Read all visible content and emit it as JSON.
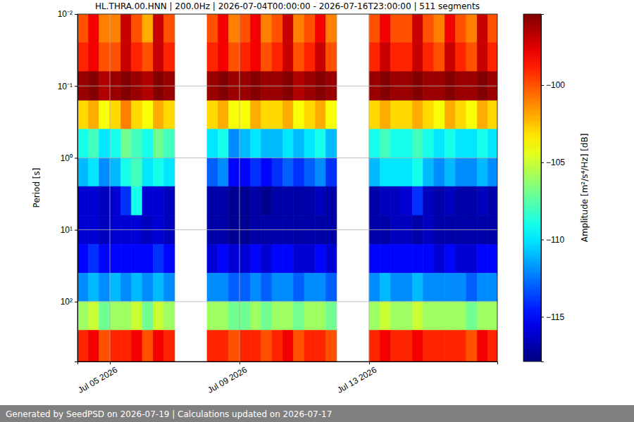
{
  "chart_data": {
    "type": "heatmap",
    "title": "HL.THRA.00.HNN | 200.0Hz | 2026-07-04T00:00:00 - 2026-07-16T23:00:00 | 511 segments",
    "y_label": "Period [s]",
    "footer": "Generated by SeedPSD on 2026-07-19 | Calculations updated on 2026-07-17",
    "log": "y",
    "grid": true,
    "xlim": [
      "2026-07-04T00:00",
      "2026-07-16T23:00"
    ],
    "xticks": [
      {
        "value": "2026-07-05T00:00",
        "label": "Jul 05 2026"
      },
      {
        "value": "2026-07-09T00:00",
        "label": "Jul 09 2026"
      },
      {
        "value": "2026-07-13T00:00",
        "label": "Jul 13 2026"
      }
    ],
    "ylim": [
      0.01,
      680
    ],
    "yticks": [
      {
        "value": 0.01,
        "label": "10⁻²"
      },
      {
        "value": 0.1,
        "label": "10⁻¹"
      },
      {
        "value": 1,
        "label": "10⁰"
      },
      {
        "value": 10,
        "label": "10¹"
      },
      {
        "value": 100,
        "label": "10²"
      }
    ],
    "x_edges": [
      "2026-07-04T00:00",
      "2026-07-04T08:00",
      "2026-07-04T16:00",
      "2026-07-05T00:00",
      "2026-07-05T08:00",
      "2026-07-05T16:00",
      "2026-07-06T00:00",
      "2026-07-06T08:00",
      "2026-07-06T16:00",
      "2026-07-07T00:00",
      "2026-07-07T08:00",
      "2026-07-07T16:00",
      "2026-07-08T00:00",
      "2026-07-08T08:00",
      "2026-07-08T16:00",
      "2026-07-09T00:00",
      "2026-07-09T08:00",
      "2026-07-09T16:00",
      "2026-07-10T00:00",
      "2026-07-10T08:00",
      "2026-07-10T16:00",
      "2026-07-11T00:00",
      "2026-07-11T08:00",
      "2026-07-11T16:00",
      "2026-07-12T00:00",
      "2026-07-12T08:00",
      "2026-07-12T16:00",
      "2026-07-13T00:00",
      "2026-07-13T08:00",
      "2026-07-13T16:00",
      "2026-07-14T00:00",
      "2026-07-14T08:00",
      "2026-07-14T16:00",
      "2026-07-15T00:00",
      "2026-07-15T08:00",
      "2026-07-15T16:00",
      "2026-07-16T00:00",
      "2026-07-16T08:00",
      "2026-07-16T16:00",
      "2026-07-16T23:00"
    ],
    "y_edges": [
      0.01,
      0.025,
      0.063,
      0.16,
      0.4,
      1,
      2.5,
      6.3,
      16,
      40,
      100,
      250,
      680
    ],
    "values": [
      [
        -100,
        -99,
        -96,
        -103,
        -109,
        -111,
        -116,
        -116,
        -115,
        -112,
        -106,
        -99
      ],
      [
        -98,
        -98,
        -95.5,
        -102,
        -108,
        -110,
        -116,
        -116,
        -114,
        -111,
        -105,
        -98
      ],
      [
        -101,
        -100,
        -96.5,
        -104,
        -110,
        -112,
        -116.5,
        -116.5,
        -115,
        -112,
        -107,
        -100
      ],
      [
        -101,
        -100,
        -96,
        -103,
        -109,
        -111,
        -116,
        -116,
        -115,
        -111,
        -106,
        -99
      ],
      [
        -97,
        -97,
        -95.5,
        -101,
        -107,
        -109,
        -114,
        -116,
        -115,
        -112,
        -106,
        -99
      ],
      [
        -100,
        -99,
        -96,
        -103,
        -108,
        -108,
        -109,
        -116,
        -115,
        -111,
        -105,
        -98
      ],
      [
        -102,
        -100,
        -96.5,
        -104,
        -109,
        -110,
        -116,
        -116.5,
        -115,
        -112,
        -107,
        -100
      ],
      [
        -97,
        -97,
        -95.5,
        -102,
        -107,
        -109,
        -116,
        -116,
        -114,
        -111,
        -105,
        -98
      ],
      [
        -100,
        -99,
        -96,
        -103,
        -108,
        -110,
        -116.5,
        -116.5,
        -115,
        -112,
        -106,
        -99
      ],
      null,
      null,
      null,
      [
        -100,
        -99,
        -96,
        -103,
        -110,
        -113,
        -117,
        -117,
        -116,
        -112,
        -106,
        -99
      ],
      [
        -98,
        -98,
        -95.5,
        -102,
        -109,
        -112,
        -117,
        -117,
        -115,
        -112,
        -106,
        -99
      ],
      [
        -101,
        -100,
        -96,
        -104,
        -112,
        -115,
        -117.5,
        -117.5,
        -116,
        -113,
        -107,
        -100
      ],
      [
        -100,
        -99,
        -96,
        -104,
        -111,
        -115,
        -117.5,
        -117.5,
        -116,
        -113,
        -107,
        -99
      ],
      [
        -98,
        -98,
        -95.5,
        -102,
        -110,
        -114,
        -117,
        -117,
        -115,
        -112,
        -106,
        -99
      ],
      [
        -101,
        -100,
        -96,
        -103,
        -111,
        -115,
        -117.5,
        -117,
        -116,
        -113,
        -107,
        -100
      ],
      [
        -100,
        -99,
        -96,
        -103,
        -111,
        -114,
        -117,
        -117,
        -115,
        -112,
        -106,
        -99
      ],
      [
        -97,
        -97,
        -95.5,
        -102,
        -110,
        -113,
        -117,
        -117,
        -115,
        -112,
        -106,
        -98
      ],
      [
        -101,
        -100,
        -96.5,
        -104,
        -111,
        -114,
        -117,
        -117,
        -116,
        -113,
        -107,
        -100
      ],
      [
        -100,
        -99,
        -96,
        -103,
        -110,
        -113,
        -117,
        -117,
        -116,
        -112,
        -106,
        -99
      ],
      [
        -98,
        -97,
        -95.5,
        -102,
        -109,
        -112,
        -116.5,
        -117,
        -115,
        -112,
        -106,
        -99
      ],
      [
        -101,
        -100,
        -96,
        -104,
        -111,
        -114,
        -117,
        -117,
        -116,
        -113,
        -107,
        -100
      ],
      null,
      null,
      null,
      [
        -100,
        -99,
        -96,
        -103,
        -109,
        -111,
        -117,
        -117,
        -115,
        -112,
        -106,
        -99
      ],
      [
        -98,
        -97,
        -95.5,
        -102,
        -108,
        -110,
        -116.5,
        -117,
        -115,
        -111,
        -105,
        -98
      ],
      [
        -100,
        -99,
        -96,
        -103,
        -109,
        -110,
        -116.5,
        -116.5,
        -115,
        -112,
        -106,
        -99
      ],
      [
        -100,
        -99,
        -96,
        -103,
        -109,
        -110,
        -116,
        -116.5,
        -115,
        -112,
        -106,
        -99
      ],
      [
        -97,
        -97,
        -95.5,
        -102,
        -108,
        -109,
        -114,
        -117,
        -115,
        -111,
        -105,
        -98
      ],
      [
        -100,
        -99,
        -96,
        -103,
        -109,
        -111,
        -116.5,
        -116.5,
        -115,
        -112,
        -106,
        -99
      ],
      [
        -101,
        -100,
        -96,
        -104,
        -110,
        -112,
        -117,
        -117,
        -116,
        -112,
        -106,
        -99
      ],
      [
        -98,
        -97,
        -95.5,
        -102,
        -109,
        -111,
        -116.5,
        -117,
        -115,
        -112,
        -106,
        -99
      ],
      [
        -100,
        -99,
        -96,
        -103,
        -110,
        -112,
        -117,
        -117,
        -116,
        -112,
        -106,
        -99
      ],
      [
        -101,
        -100,
        -96,
        -104,
        -110,
        -112,
        -117,
        -117,
        -116,
        -113,
        -107,
        -100
      ],
      [
        -97,
        -97,
        -95.5,
        -102,
        -109,
        -111,
        -116.5,
        -117,
        -115,
        -112,
        -106,
        -98
      ],
      [
        -100,
        -99,
        -96,
        -103,
        -110,
        -112,
        -117,
        -117,
        -115,
        -112,
        -106,
        -99
      ]
    ],
    "colorbar": {
      "label": "Amplitude [m²/s⁴/Hz] [dB]",
      "range": [
        -117.9,
        -95.4
      ],
      "ticks": [
        {
          "value": -115,
          "label": "−115"
        },
        {
          "value": -110,
          "label": "−110"
        },
        {
          "value": -105,
          "label": "−105"
        },
        {
          "value": -100,
          "label": "−100"
        }
      ]
    }
  }
}
